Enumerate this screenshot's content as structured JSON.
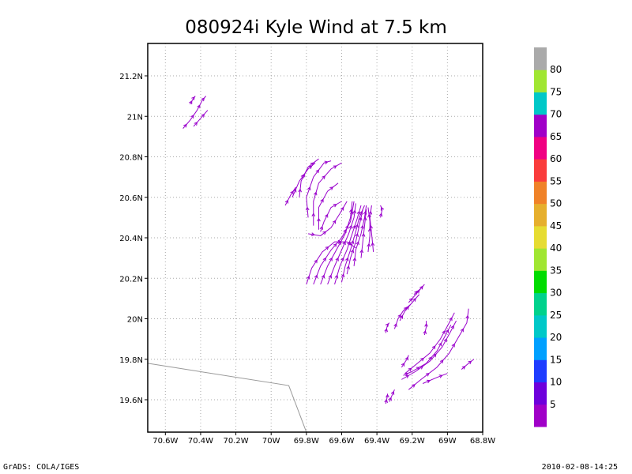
{
  "chart_data": {
    "type": "streamline",
    "title": "080924i Kyle Wind at 7.5 km",
    "x_axis": {
      "range": [
        -70.7,
        -68.8
      ],
      "ticks": [
        -70.6,
        -70.4,
        -70.2,
        -70.0,
        -69.8,
        -69.6,
        -69.4,
        -69.2,
        -69.0,
        -68.8
      ],
      "tick_labels": [
        "70.6W",
        "70.4W",
        "70.2W",
        "70W",
        "69.8W",
        "69.6W",
        "69.4W",
        "69.2W",
        "69W",
        "68.8W"
      ]
    },
    "y_axis": {
      "range": [
        19.44,
        21.36
      ],
      "ticks": [
        19.6,
        19.8,
        20.0,
        20.2,
        20.4,
        20.6,
        20.8,
        21.0,
        21.2
      ],
      "tick_labels": [
        "19.6N",
        "19.8N",
        "20N",
        "20.2N",
        "20.4N",
        "20.6N",
        "20.8N",
        "21N",
        "21.2N"
      ]
    },
    "grid": true,
    "stream_color": "#9900cc",
    "coastline": [
      [
        -70.7,
        19.78
      ],
      [
        -69.9,
        19.67
      ],
      [
        -69.8,
        19.44
      ]
    ],
    "colorbar": {
      "labels": [
        "5",
        "10",
        "15",
        "20",
        "25",
        "30",
        "35",
        "40",
        "45",
        "50",
        "55",
        "60",
        "65",
        "70",
        "75",
        "80"
      ],
      "colors": [
        "#a000c8",
        "#6e00dc",
        "#1e3cff",
        "#00a0ff",
        "#00c8c8",
        "#00d28c",
        "#00dc00",
        "#a0e632",
        "#e6dc32",
        "#e6af2d",
        "#f08228",
        "#fa3c3c",
        "#f00082",
        "#a000c8",
        "#00c8c8",
        "#a0e632",
        "#aaaaaa"
      ]
    },
    "streamlines": [
      [
        [
          -70.46,
          21.06
        ],
        [
          -70.44,
          21.09
        ],
        [
          -70.43,
          21.1
        ]
      ],
      [
        [
          -70.5,
          20.94
        ],
        [
          -70.46,
          20.98
        ],
        [
          -70.42,
          21.03
        ],
        [
          -70.39,
          21.08
        ],
        [
          -70.37,
          21.1
        ]
      ],
      [
        [
          -70.44,
          20.95
        ],
        [
          -70.4,
          20.99
        ],
        [
          -70.36,
          21.03
        ]
      ],
      [
        [
          -69.92,
          20.56
        ],
        [
          -69.89,
          20.61
        ],
        [
          -69.86,
          20.65
        ]
      ],
      [
        [
          -69.88,
          20.6
        ],
        [
          -69.84,
          20.68
        ],
        [
          -69.79,
          20.74
        ],
        [
          -69.75,
          20.77
        ]
      ],
      [
        [
          -69.84,
          20.6
        ],
        [
          -69.83,
          20.68
        ],
        [
          -69.79,
          20.75
        ],
        [
          -69.73,
          20.79
        ]
      ],
      [
        [
          -69.79,
          20.5
        ],
        [
          -69.8,
          20.6
        ],
        [
          -69.76,
          20.7
        ],
        [
          -69.7,
          20.77
        ],
        [
          -69.66,
          20.78
        ]
      ],
      [
        [
          -69.76,
          20.46
        ],
        [
          -69.76,
          20.58
        ],
        [
          -69.73,
          20.67
        ],
        [
          -69.66,
          20.74
        ],
        [
          -69.6,
          20.77
        ]
      ],
      [
        [
          -69.73,
          20.44
        ],
        [
          -69.73,
          20.55
        ],
        [
          -69.68,
          20.63
        ],
        [
          -69.62,
          20.67
        ]
      ],
      [
        [
          -69.72,
          20.43
        ],
        [
          -69.7,
          20.48
        ],
        [
          -69.66,
          20.55
        ],
        [
          -69.6,
          20.58
        ]
      ],
      [
        [
          -69.79,
          20.42
        ],
        [
          -69.72,
          20.41
        ],
        [
          -69.66,
          20.45
        ],
        [
          -69.61,
          20.52
        ],
        [
          -69.57,
          20.58
        ]
      ],
      [
        [
          -69.8,
          20.17
        ],
        [
          -69.77,
          20.25
        ],
        [
          -69.71,
          20.33
        ],
        [
          -69.64,
          20.38
        ],
        [
          -69.57,
          20.38
        ],
        [
          -69.52,
          20.35
        ]
      ],
      [
        [
          -69.76,
          20.17
        ],
        [
          -69.72,
          20.26
        ],
        [
          -69.66,
          20.34
        ],
        [
          -69.6,
          20.4
        ],
        [
          -69.55,
          20.48
        ],
        [
          -69.53,
          20.58
        ]
      ],
      [
        [
          -69.72,
          20.17
        ],
        [
          -69.68,
          20.26
        ],
        [
          -69.63,
          20.34
        ],
        [
          -69.58,
          20.42
        ],
        [
          -69.55,
          20.5
        ],
        [
          -69.54,
          20.58
        ]
      ],
      [
        [
          -69.68,
          20.17
        ],
        [
          -69.64,
          20.26
        ],
        [
          -69.6,
          20.34
        ],
        [
          -69.56,
          20.42
        ],
        [
          -69.53,
          20.5
        ],
        [
          -69.52,
          20.57
        ]
      ],
      [
        [
          -69.64,
          20.17
        ],
        [
          -69.61,
          20.26
        ],
        [
          -69.57,
          20.34
        ],
        [
          -69.54,
          20.42
        ],
        [
          -69.51,
          20.5
        ],
        [
          -69.49,
          20.56
        ]
      ],
      [
        [
          -69.6,
          20.18
        ],
        [
          -69.58,
          20.26
        ],
        [
          -69.55,
          20.34
        ],
        [
          -69.52,
          20.43
        ],
        [
          -69.5,
          20.5
        ],
        [
          -69.47,
          20.56
        ]
      ],
      [
        [
          -69.57,
          20.22
        ],
        [
          -69.55,
          20.3
        ],
        [
          -69.52,
          20.38
        ],
        [
          -69.5,
          20.46
        ],
        [
          -69.48,
          20.54
        ]
      ],
      [
        [
          -69.53,
          20.26
        ],
        [
          -69.52,
          20.34
        ],
        [
          -69.49,
          20.42
        ],
        [
          -69.47,
          20.5
        ],
        [
          -69.46,
          20.56
        ]
      ],
      [
        [
          -69.49,
          20.3
        ],
        [
          -69.48,
          20.38
        ],
        [
          -69.47,
          20.46
        ],
        [
          -69.46,
          20.54
        ]
      ],
      [
        [
          -69.45,
          20.33
        ],
        [
          -69.44,
          20.41
        ],
        [
          -69.44,
          20.48
        ],
        [
          -69.45,
          20.55
        ]
      ],
      [
        [
          -69.42,
          20.33
        ],
        [
          -69.43,
          20.42
        ],
        [
          -69.44,
          20.5
        ],
        [
          -69.43,
          20.56
        ]
      ],
      [
        [
          -69.38,
          20.5
        ],
        [
          -69.37,
          20.54
        ],
        [
          -69.38,
          20.56
        ]
      ],
      [
        [
          -69.35,
          19.93
        ],
        [
          -69.34,
          19.97
        ],
        [
          -69.33,
          19.98
        ]
      ],
      [
        [
          -69.3,
          19.95
        ],
        [
          -69.28,
          20.0
        ],
        [
          -69.25,
          20.04
        ],
        [
          -69.21,
          20.07
        ]
      ],
      [
        [
          -69.27,
          19.99
        ],
        [
          -69.24,
          20.04
        ],
        [
          -69.2,
          20.08
        ],
        [
          -69.16,
          20.12
        ]
      ],
      [
        [
          -69.22,
          20.08
        ],
        [
          -69.18,
          20.12
        ],
        [
          -69.14,
          20.16
        ]
      ],
      [
        [
          -69.19,
          20.12
        ],
        [
          -69.15,
          20.15
        ],
        [
          -69.13,
          20.17
        ]
      ],
      [
        [
          -69.13,
          19.92
        ],
        [
          -69.12,
          19.96
        ],
        [
          -69.12,
          19.99
        ]
      ],
      [
        [
          -69.25,
          19.72
        ],
        [
          -69.2,
          19.74
        ],
        [
          -69.12,
          19.78
        ],
        [
          -69.06,
          19.84
        ],
        [
          -69.01,
          19.92
        ],
        [
          -68.98,
          19.97
        ]
      ],
      [
        [
          -69.24,
          19.73
        ],
        [
          -69.17,
          19.78
        ],
        [
          -69.1,
          19.83
        ],
        [
          -69.04,
          19.9
        ],
        [
          -68.99,
          19.98
        ],
        [
          -68.96,
          20.03
        ]
      ],
      [
        [
          -69.26,
          19.7
        ],
        [
          -69.18,
          19.74
        ],
        [
          -69.1,
          19.79
        ],
        [
          -69.03,
          19.86
        ],
        [
          -68.98,
          19.94
        ],
        [
          -68.95,
          19.99
        ]
      ],
      [
        [
          -69.22,
          19.65
        ],
        [
          -69.15,
          19.7
        ],
        [
          -69.06,
          19.76
        ],
        [
          -68.99,
          19.83
        ],
        [
          -68.93,
          19.92
        ],
        [
          -68.89,
          19.98
        ],
        [
          -68.88,
          20.05
        ]
      ],
      [
        [
          -69.26,
          19.76
        ],
        [
          -69.23,
          19.8
        ],
        [
          -69.22,
          19.82
        ]
      ],
      [
        [
          -69.14,
          19.68
        ],
        [
          -69.06,
          19.71
        ],
        [
          -69.0,
          19.73
        ]
      ],
      [
        [
          -68.92,
          19.75
        ],
        [
          -68.88,
          19.78
        ],
        [
          -68.85,
          19.8
        ]
      ],
      [
        [
          -69.35,
          19.58
        ],
        [
          -69.34,
          19.62
        ],
        [
          -69.34,
          19.63
        ]
      ],
      [
        [
          -69.33,
          19.59
        ],
        [
          -69.31,
          19.63
        ],
        [
          -69.3,
          19.65
        ]
      ]
    ]
  },
  "footer": {
    "left": "GrADS: COLA/IGES",
    "right": "2010-02-08-14:25"
  }
}
